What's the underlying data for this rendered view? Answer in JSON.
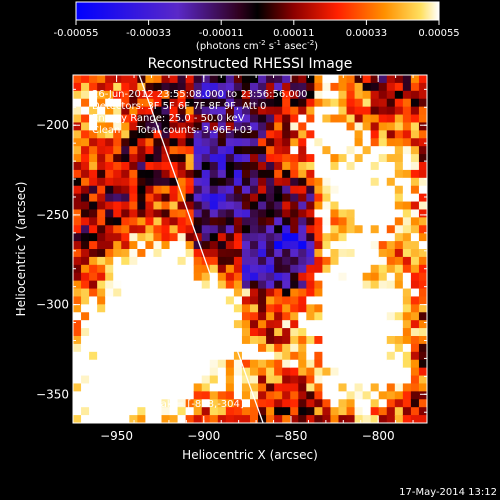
{
  "chart_data": {
    "type": "heatmap",
    "title": "Reconstructed RHESSI Image",
    "xlabel": "Heliocentric X (arcsec)",
    "ylabel": "Heliocentric Y (arcsec)",
    "xlim": [
      -975,
      -772
    ],
    "ylim": [
      -366,
      -172
    ],
    "x_ticks": [
      -950,
      -900,
      -850,
      -800
    ],
    "y_ticks": [
      -200,
      -250,
      -300,
      -350
    ],
    "colorbar": {
      "ticks": [
        "-0.00055",
        "-0.00033",
        "-0.00011",
        "0.00011",
        "0.00033",
        "0.00055"
      ],
      "range": [
        -0.00055,
        0.00055
      ],
      "units_text": "(photons cm",
      "units_exp1": "-2",
      "units_mid": " s",
      "units_exp2": "-1",
      "units_end": " asec",
      "units_exp3": "-2",
      "units_close": ")"
    },
    "info_lines": [
      "26-Jun-2012 23:55:08.000 to 23:56:56.000",
      "Detectors: 3F 5F 6F 7F 8F 9F, Att 0",
      "Energy Range: 25.0 - 50.0 keV",
      "Clean     Total counts: 3.96E+03"
    ],
    "peak_label": "Position of Peak = [-818,-304]",
    "limb_line": [
      [
        -937,
        -172
      ],
      [
        -866,
        -366
      ]
    ]
  },
  "footer": {
    "timestamp": "17-May-2014 13:12"
  }
}
